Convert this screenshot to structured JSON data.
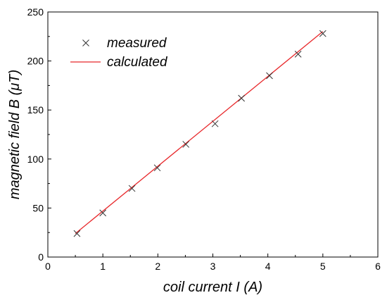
{
  "chart_data": {
    "type": "scatter",
    "title": "",
    "xlabel": "coil current I (A)",
    "ylabel": "magnetic field B (μT)",
    "xlim": [
      0,
      6
    ],
    "ylim": [
      0,
      250
    ],
    "xticks": [
      0,
      1,
      2,
      3,
      4,
      5,
      6
    ],
    "yticks": [
      0,
      50,
      100,
      150,
      200,
      250
    ],
    "grid": false,
    "legend": {
      "position": "top-left"
    },
    "series": [
      {
        "name": "measured",
        "kind": "scatter",
        "marker": "x",
        "color": "#333333",
        "points": [
          [
            0.53,
            24
          ],
          [
            1.0,
            45
          ],
          [
            1.53,
            70
          ],
          [
            1.99,
            91
          ],
          [
            2.51,
            115
          ],
          [
            3.04,
            136
          ],
          [
            3.52,
            162
          ],
          [
            4.03,
            185
          ],
          [
            4.55,
            207
          ],
          [
            5.0,
            228
          ]
        ]
      },
      {
        "name": "calculated",
        "kind": "line",
        "color": "#e8282b",
        "points": [
          [
            0.5,
            24
          ],
          [
            5.0,
            230
          ]
        ]
      }
    ]
  }
}
